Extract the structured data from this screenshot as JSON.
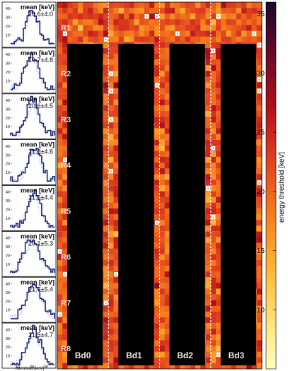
{
  "chart_data": [
    {
      "type": "heatmap",
      "colorbar": {
        "label": "energy threshold [keV]",
        "ticks": [
          10,
          15,
          20,
          25,
          30,
          35
        ],
        "range": [
          5,
          36
        ],
        "colors": [
          "#ffffc0",
          "#ffe070",
          "#ffb030",
          "#f57a1c",
          "#e04020",
          "#b0101a",
          "#6a0a2a",
          "#1a0a2a"
        ]
      },
      "row_labels": [
        "R1",
        "R2",
        "R3",
        "R4",
        "R5",
        "R6",
        "R7",
        "R8"
      ],
      "board_labels": [
        "Bd0",
        "Bd1",
        "Bd2",
        "Bd3"
      ],
      "disabled_marker": "x",
      "grid": {
        "columns": 40,
        "rows": 64
      }
    },
    {
      "type": "bar",
      "panels": [
        {
          "label": "mean [keV]",
          "value": "20.6±4.0"
        },
        {
          "label": "mean [keV]",
          "value": "19.7±4.8"
        },
        {
          "label": "mean [keV]",
          "value": "20.6±4.5"
        },
        {
          "label": "mean [keV]",
          "value": "21.8±4.6"
        },
        {
          "label": "mean [keV]",
          "value": "21.5±4.4"
        },
        {
          "label": "mean [keV]",
          "value": "20.1±5.3"
        },
        {
          "label": "mean [keV]",
          "value": "21.7±5.4"
        },
        {
          "label": "mean [keV]",
          "value": "21.5±4.7"
        }
      ],
      "y_ticks": [
        "10",
        "20",
        "30",
        "40"
      ],
      "x_ticks": [
        "10",
        "20",
        "30"
      ],
      "xlabel": "threshold [keV]",
      "xlim": [
        5,
        36
      ],
      "ylim": [
        0,
        45
      ]
    }
  ]
}
